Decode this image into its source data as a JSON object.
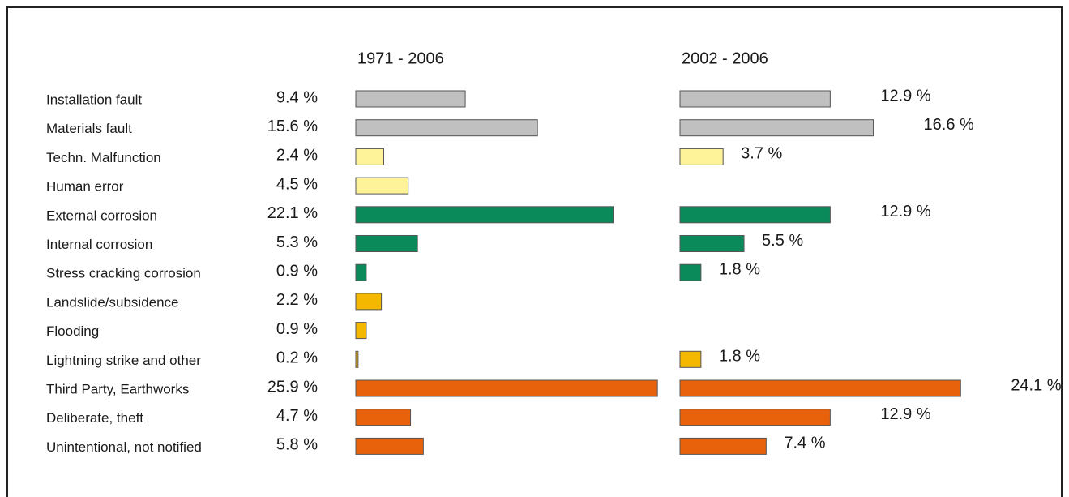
{
  "chart_data": {
    "type": "bar",
    "categories": [
      "Installation fault",
      "Materials fault",
      "Techn. Malfunction",
      "Human error",
      "External corrosion",
      "Internal corrosion",
      "Stress cracking corrosion",
      "Landslide/subsidence",
      "Flooding",
      "Lightning strike and other",
      "Third Party, Earthworks",
      "Deliberate, theft",
      "Unintentional, not notified"
    ],
    "colors": [
      "#c0c0c0",
      "#c0c0c0",
      "#fff39a",
      "#fff39a",
      "#0a8a5a",
      "#0a8a5a",
      "#0a8a5a",
      "#f5b800",
      "#f5b800",
      "#f5b800",
      "#e8620c",
      "#e8620c",
      "#e8620c"
    ],
    "series": [
      {
        "name": "1971 - 2006",
        "values": [
          9.4,
          15.6,
          2.4,
          4.5,
          22.1,
          5.3,
          0.9,
          2.2,
          0.9,
          0.2,
          25.9,
          4.7,
          5.8
        ],
        "value_labels": [
          "9.4 %",
          "15.6 %",
          "2.4 %",
          "4.5 %",
          "22.1 %",
          "5.3 %",
          "0.9 %",
          "2.2 %",
          "0.9 %",
          "0.2 %",
          "25.9 %",
          "4.7 %",
          "5.8 %"
        ]
      },
      {
        "name": "2002 - 2006",
        "values": [
          12.9,
          16.6,
          3.7,
          null,
          12.9,
          5.5,
          1.8,
          null,
          null,
          1.8,
          24.1,
          12.9,
          7.4
        ],
        "value_labels": [
          "12.9 %",
          "16.6 %",
          "3.7 %",
          null,
          "12.9 %",
          "5.5 %",
          "1.8 %",
          null,
          null,
          "1.8 %",
          "24.1 %",
          "12.9 %",
          "7.4 %"
        ]
      }
    ]
  }
}
